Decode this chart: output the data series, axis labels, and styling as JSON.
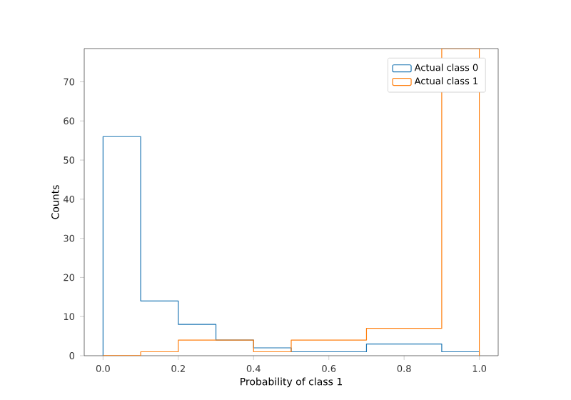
{
  "chart_data": {
    "type": "histogram",
    "xlabel": "Probability of class 1",
    "ylabel": "Counts",
    "bins": [
      0,
      0.1,
      0.2,
      0.3,
      0.4,
      0.5,
      0.6,
      0.7,
      0.8,
      0.9,
      1.0
    ],
    "series": [
      {
        "name": "Actual class 0",
        "color": "#1f77b4",
        "values": [
          56,
          14,
          8,
          4,
          2,
          1,
          1,
          3,
          3,
          1
        ]
      },
      {
        "name": "Actual class 1",
        "color": "#ff7f0e",
        "values": [
          0,
          1,
          4,
          4,
          1,
          4,
          4,
          7,
          7,
          78.5
        ]
      }
    ],
    "xlim": [
      -0.05,
      1.05
    ],
    "ylim": [
      0,
      78.5
    ],
    "xticks": [
      {
        "value": 0,
        "label": "0.0"
      },
      {
        "value": 0.2,
        "label": "0.2"
      },
      {
        "value": 0.4,
        "label": "0.4"
      },
      {
        "value": 0.6,
        "label": "0.6"
      },
      {
        "value": 0.8,
        "label": "0.8"
      },
      {
        "value": 1.0,
        "label": "1.0"
      }
    ],
    "yticks": [
      0,
      10,
      20,
      30,
      40,
      50,
      60,
      70
    ],
    "legend": "top right",
    "grid": false
  }
}
